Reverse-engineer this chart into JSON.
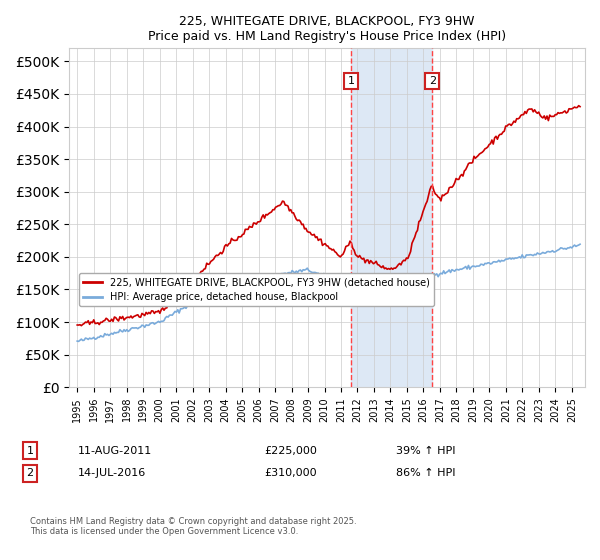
{
  "title": "225, WHITEGATE DRIVE, BLACKPOOL, FY3 9HW",
  "subtitle": "Price paid vs. HM Land Registry's House Price Index (HPI)",
  "red_label": "225, WHITEGATE DRIVE, BLACKPOOL, FY3 9HW (detached house)",
  "blue_label": "HPI: Average price, detached house, Blackpool",
  "annotation1_date": "11-AUG-2011",
  "annotation1_price": "£225,000",
  "annotation1_hpi": "39% ↑ HPI",
  "annotation1_year": 2011.6,
  "annotation1_value": 225000,
  "annotation2_date": "14-JUL-2016",
  "annotation2_price": "£310,000",
  "annotation2_hpi": "86% ↑ HPI",
  "annotation2_year": 2016.54,
  "annotation2_value": 310000,
  "ylim": [
    0,
    520000
  ],
  "yticks": [
    0,
    50000,
    100000,
    150000,
    200000,
    250000,
    300000,
    350000,
    400000,
    450000,
    500000
  ],
  "footer": "Contains HM Land Registry data © Crown copyright and database right 2025.\nThis data is licensed under the Open Government Licence v3.0.",
  "bg_highlight_color": "#dde8f5",
  "red_color": "#cc0000",
  "blue_color": "#7aabdb",
  "vline_color": "#ff4444"
}
